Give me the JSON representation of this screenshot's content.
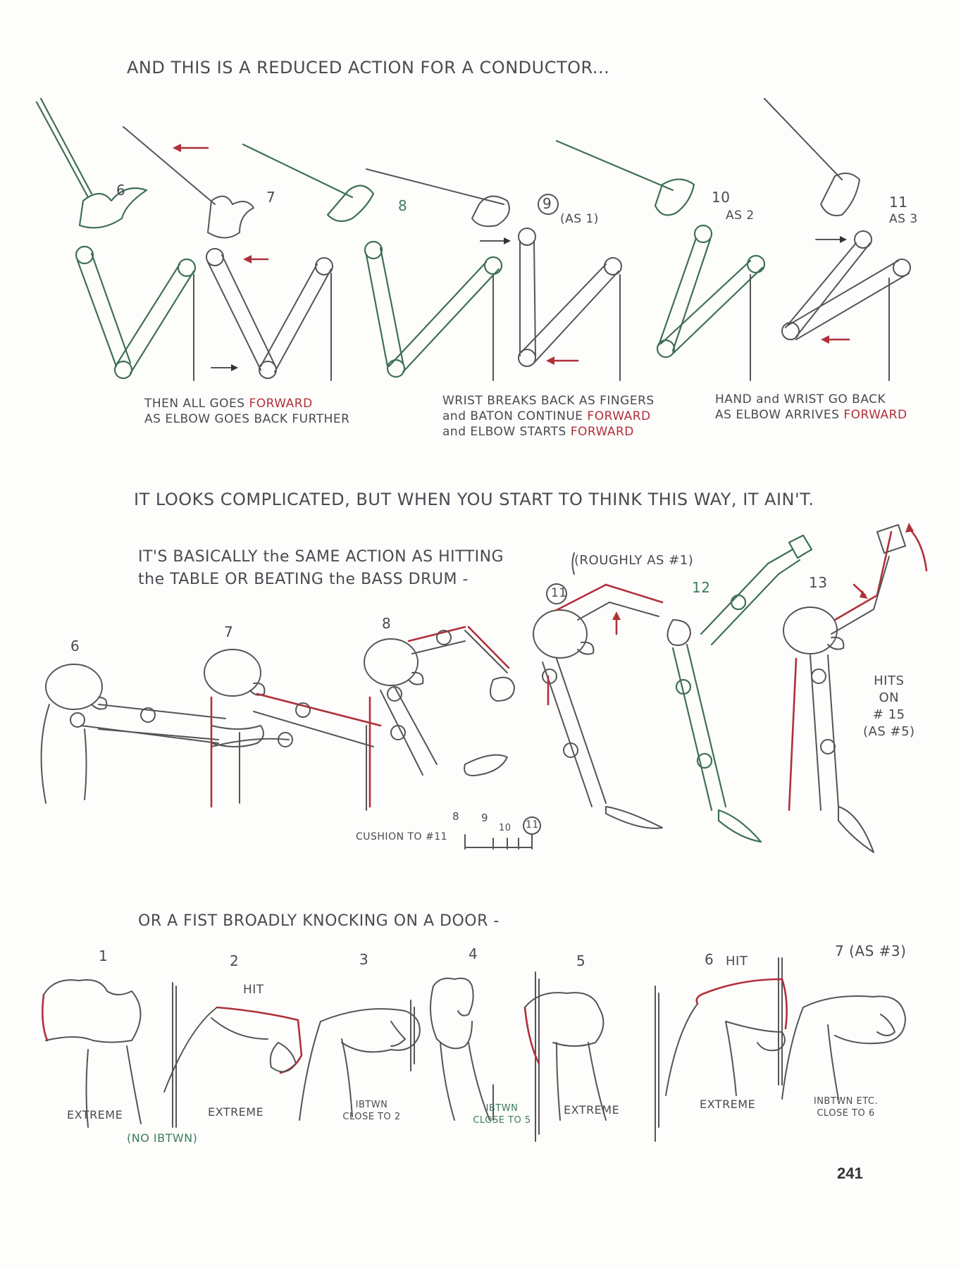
{
  "headings": {
    "conductor": "AND THIS IS A REDUCED ACTION FOR A CONDUCTOR...",
    "complicated": "IT LOOKS COMPLICATED, BUT WHEN YOU START TO THINK THIS WAY, IT AIN'T.",
    "basically_1": "IT'S BASICALLY the SAME ACTION AS HITTING",
    "basically_2": "the TABLE OR BEATING the BASS DRUM -",
    "fist": "OR A FIST BROADLY KNOCKING ON A DOOR -"
  },
  "conductor": {
    "frames": [
      "6",
      "7",
      "8",
      "9",
      "10",
      "11"
    ],
    "frame9_note": "(AS 1)",
    "frame10_note": "AS 2",
    "frame11_note": "AS 3",
    "caption1": {
      "line1": "THEN ALL GOES",
      "line1_red": "FORWARD",
      "line2": "AS ELBOW GOES BACK FURTHER"
    },
    "caption2": {
      "line1": "WRIST BREAKS BACK AS FINGERS",
      "line2": "and BATON CONTINUE",
      "line2_red": "FORWARD",
      "line3": "and ELBOW STARTS",
      "line3_red": "FORWARD"
    },
    "caption3": {
      "line1": "HAND and WRIST GO BACK",
      "line2": "AS ELBOW ARRIVES",
      "line2_red": "FORWARD"
    }
  },
  "drum": {
    "frames": [
      "6",
      "7",
      "8",
      "11",
      "12",
      "13"
    ],
    "roughly": "(ROUGHLY AS #1)",
    "hits_on": [
      "HITS",
      "ON",
      "# 15",
      "(AS #5)"
    ],
    "cushion": "CUSHION TO #11",
    "timing_numbers": [
      "8",
      "9",
      "10",
      "11"
    ]
  },
  "fist": {
    "frames": [
      "1",
      "2",
      "3",
      "4",
      "5",
      "6",
      "7 (AS #3)"
    ],
    "hit_2": "HIT",
    "hit_6": "HIT",
    "labels": [
      {
        "text": "EXTREME"
      },
      {
        "text": "EXTREME"
      },
      {
        "text": "IBTWN CLOSE TO 2"
      },
      {
        "text": "IBTWN CLOSE TO 5"
      },
      {
        "text": "EXTREME"
      },
      {
        "text": "EXTREME"
      },
      {
        "text": "INBTWN ETC. CLOSE TO 6"
      }
    ],
    "no_ibtwn": "(NO IBTWN)"
  },
  "page_number": "241"
}
